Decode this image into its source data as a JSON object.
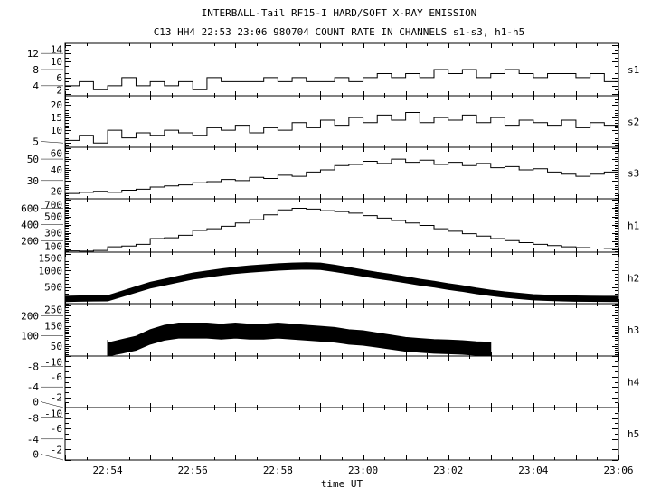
{
  "chart_data": {
    "type": "line",
    "title": "INTERBALL-Tail RF15-I HARD/SOFT X-RAY EMISSION",
    "subtitle": "C13 HH4 22:53 23:06 980704  COUNT RATE IN CHANNELS s1-s3, h1-h5",
    "xlabel": "time UT",
    "xlim_minutes_after_2253": [
      0,
      13
    ],
    "x_tick_labels": [
      "22:54",
      "22:56",
      "22:58",
      "23:00",
      "23:02",
      "23:04",
      "23:06"
    ],
    "sample_interval_seconds": 20,
    "panels": [
      {
        "name": "s1",
        "style": "step",
        "ylim": [
          1.5,
          14.5
        ],
        "ticks": [
          2,
          4,
          6,
          8,
          10,
          12,
          14
        ],
        "minor": 1,
        "values": [
          4,
          5,
          3,
          4,
          6,
          4,
          5,
          4,
          5,
          3,
          6,
          5,
          5,
          5,
          6,
          5,
          6,
          5,
          5,
          6,
          5,
          6,
          7,
          6,
          7,
          6,
          8,
          7,
          8,
          6,
          7,
          8,
          7,
          6,
          7,
          7,
          6,
          7,
          5,
          6
        ]
      },
      {
        "name": "s2",
        "style": "step",
        "ylim": [
          3.3,
          23.6
        ],
        "ticks": [
          5,
          10,
          15,
          20
        ],
        "minor": 1,
        "values": [
          6,
          8,
          5,
          10,
          7,
          9,
          8,
          10,
          9,
          8,
          11,
          10,
          12,
          9,
          11,
          10,
          13,
          11,
          14,
          12,
          15,
          13,
          16,
          14,
          17,
          13,
          15,
          14,
          16,
          13,
          15,
          12,
          14,
          13,
          12,
          14,
          11,
          13,
          12,
          12
        ]
      },
      {
        "name": "s3",
        "style": "step",
        "ylim": [
          13,
          61
        ],
        "ticks": [
          20,
          30,
          40,
          50,
          60
        ],
        "minor": 2,
        "values": [
          18,
          19,
          20,
          19,
          21,
          22,
          24,
          25,
          26,
          28,
          29,
          31,
          30,
          33,
          32,
          35,
          34,
          38,
          40,
          44,
          45,
          48,
          46,
          50,
          47,
          49,
          45,
          47,
          44,
          46,
          42,
          43,
          40,
          41,
          38,
          36,
          34,
          36,
          38,
          35
        ]
      },
      {
        "name": "h1",
        "style": "step",
        "ylim": [
          65,
          715
        ],
        "ticks": [
          100,
          200,
          300,
          400,
          500,
          600,
          700
        ],
        "minor": 20,
        "values": [
          80,
          78,
          85,
          130,
          140,
          160,
          230,
          240,
          270,
          330,
          350,
          380,
          420,
          460,
          520,
          580,
          600,
          590,
          570,
          560,
          540,
          510,
          480,
          450,
          420,
          390,
          350,
          320,
          290,
          260,
          230,
          205,
          180,
          160,
          145,
          130,
          120,
          115,
          110,
          105
        ]
      },
      {
        "name": "h2",
        "style": "band",
        "ylim": [
          0,
          1560
        ],
        "ticks": [
          500,
          1000,
          1500
        ],
        "minor": 100,
        "band_halfwidth": 110,
        "values": [
          150,
          160,
          165,
          170,
          300,
          430,
          560,
          650,
          740,
          830,
          890,
          950,
          1000,
          1040,
          1070,
          1100,
          1120,
          1130,
          1120,
          1060,
          990,
          920,
          850,
          790,
          720,
          650,
          590,
          520,
          460,
          390,
          330,
          280,
          240,
          200,
          185,
          170,
          160,
          155,
          152,
          150
        ]
      },
      {
        "name": "h3",
        "style": "band",
        "ylim": [
          0,
          260
        ],
        "ticks": [
          50,
          100,
          150,
          200,
          250
        ],
        "minor": 10,
        "band_halfwidth": 45,
        "values": [
          null,
          null,
          null,
          35,
          50,
          65,
          95,
          115,
          125,
          125,
          125,
          120,
          125,
          120,
          120,
          125,
          120,
          115,
          110,
          105,
          95,
          90,
          80,
          70,
          60,
          55,
          50,
          48,
          45,
          40,
          38,
          null,
          null,
          null,
          null,
          null,
          null,
          null,
          null,
          null
        ]
      },
      {
        "name": "h4",
        "style": "empty",
        "ylim": [
          -10,
          0
        ],
        "inverted": true,
        "ticks": [
          0,
          -2,
          -4,
          -6,
          -8,
          -10
        ],
        "minor": 1,
        "values": []
      },
      {
        "name": "h5",
        "style": "empty",
        "ylim": [
          -10,
          0
        ],
        "inverted": true,
        "ticks": [
          0,
          -2,
          -4,
          -6,
          -8,
          -10
        ],
        "minor": 1,
        "values": []
      }
    ]
  }
}
